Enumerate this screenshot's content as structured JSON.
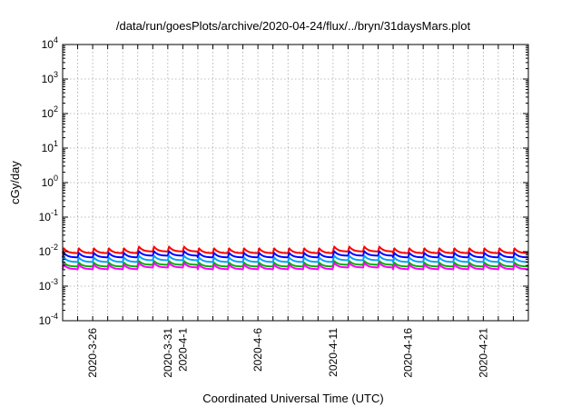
{
  "chart_data": {
    "type": "line",
    "title": "/data/run/goesPlots/archive/2020-04-24/flux/../bryn/31daysMars.plot",
    "xlabel": "Coordinated Universal Time (UTC)",
    "ylabel": "cGy/day",
    "y_scale": "log",
    "ylim": [
      0.0001,
      10000
    ],
    "xlim": [
      "2020-03-24",
      "2020-04-24"
    ],
    "grid": true,
    "x_ticks": [
      "2020-3-26",
      "2020-3-31",
      "2020-4-1",
      "2020-4-6",
      "2020-4-11",
      "2020-4-16",
      "2020-4-21"
    ],
    "y_ticks": [
      {
        "value": 0.0001,
        "base": "10",
        "exp": "-4"
      },
      {
        "value": 0.001,
        "base": "10",
        "exp": "-3"
      },
      {
        "value": 0.01,
        "base": "10",
        "exp": "-2"
      },
      {
        "value": 0.1,
        "base": "10",
        "exp": "-1"
      },
      {
        "value": 1,
        "base": "10",
        "exp": "0"
      },
      {
        "value": 10,
        "base": "10",
        "exp": "1"
      },
      {
        "value": 100,
        "base": "10",
        "exp": "2"
      },
      {
        "value": 1000,
        "base": "10",
        "exp": "3"
      },
      {
        "value": 10000,
        "base": "10",
        "exp": "4"
      }
    ],
    "series": [
      {
        "color": "#ff0000",
        "baseline": 0.009,
        "peak": 0.0125
      },
      {
        "color": "#0000ff",
        "baseline": 0.0068,
        "peak": 0.0092
      },
      {
        "color": "#00a0ff",
        "baseline": 0.005,
        "peak": 0.0068
      },
      {
        "color": "#00b000",
        "baseline": 0.0037,
        "peak": 0.0048
      },
      {
        "color": "#ff00ff",
        "baseline": 0.0031,
        "peak": 0.0042
      }
    ],
    "pulses_per_day": 1
  }
}
